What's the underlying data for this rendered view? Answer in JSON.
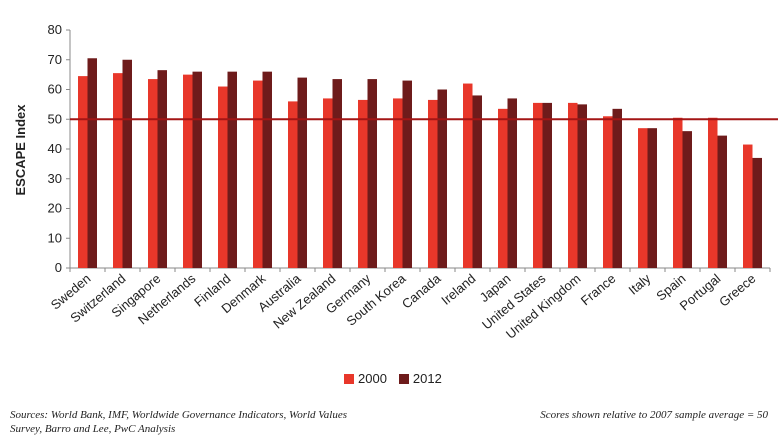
{
  "chart_data": {
    "type": "bar",
    "ylabel": "ESCAPE Index",
    "ylim": [
      0,
      80
    ],
    "yticks": [
      0,
      10,
      20,
      30,
      40,
      50,
      60,
      70,
      80
    ],
    "reference_line": 50,
    "categories": [
      "Sweden",
      "Switzerland",
      "Singapore",
      "Netherlands",
      "Finland",
      "Denmark",
      "Australia",
      "New Zealand",
      "Germany",
      "South Korea",
      "Canada",
      "Ireland",
      "Japan",
      "United States",
      "United Kingdom",
      "France",
      "Italy",
      "Spain",
      "Portugal",
      "Greece"
    ],
    "series": [
      {
        "name": "2000",
        "color": "#e8372a",
        "values": [
          64.5,
          65.5,
          63.5,
          65,
          61,
          63,
          56,
          57,
          56.5,
          57,
          56.5,
          62,
          53.5,
          55.5,
          55.5,
          51,
          47,
          50.5,
          50.5,
          41.5
        ]
      },
      {
        "name": "2012",
        "color": "#6e1b1b",
        "values": [
          70.5,
          70,
          66.5,
          66,
          66,
          66,
          64,
          63.5,
          63.5,
          63,
          60,
          58,
          57,
          55.5,
          55,
          53.5,
          47,
          46,
          44.5,
          37
        ]
      }
    ],
    "reference_line_color": "#a31515",
    "legend_position": "bottom"
  },
  "footer": {
    "sources": "Sources: World Bank, IMF, Worldwide Governance Indicators, World Values Survey, Barro and Lee, PwC Analysis",
    "note": "Scores shown relative to 2007 sample average = 50"
  }
}
